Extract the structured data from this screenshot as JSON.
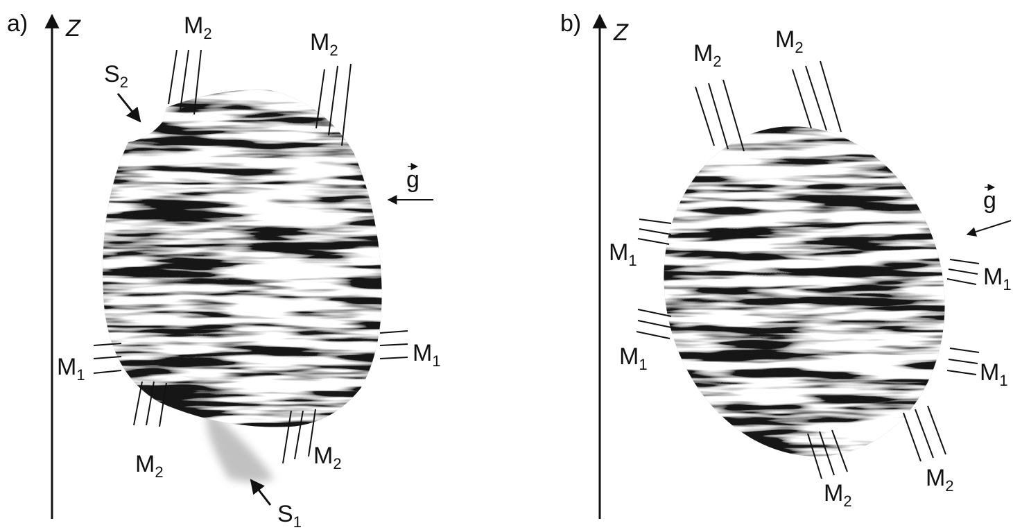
{
  "panels": [
    {
      "label": "a)",
      "axis": "Z",
      "vector": "g",
      "annotations": [
        {
          "text": "M",
          "sub": "2"
        },
        {
          "text": "M",
          "sub": "2"
        },
        {
          "text": "S",
          "sub": "2"
        },
        {
          "text": "M",
          "sub": "1"
        },
        {
          "text": "M",
          "sub": "1"
        },
        {
          "text": "M",
          "sub": "2"
        },
        {
          "text": "M",
          "sub": "2"
        },
        {
          "text": "S",
          "sub": "1"
        }
      ]
    },
    {
      "label": "b)",
      "axis": "Z",
      "vector": "g",
      "annotations": [
        {
          "text": "M",
          "sub": "2"
        },
        {
          "text": "M",
          "sub": "2"
        },
        {
          "text": "M",
          "sub": "1"
        },
        {
          "text": "M",
          "sub": "1"
        },
        {
          "text": "M",
          "sub": "1"
        },
        {
          "text": "M",
          "sub": "1"
        },
        {
          "text": "M",
          "sub": "2"
        },
        {
          "text": "M",
          "sub": "2"
        }
      ]
    }
  ]
}
